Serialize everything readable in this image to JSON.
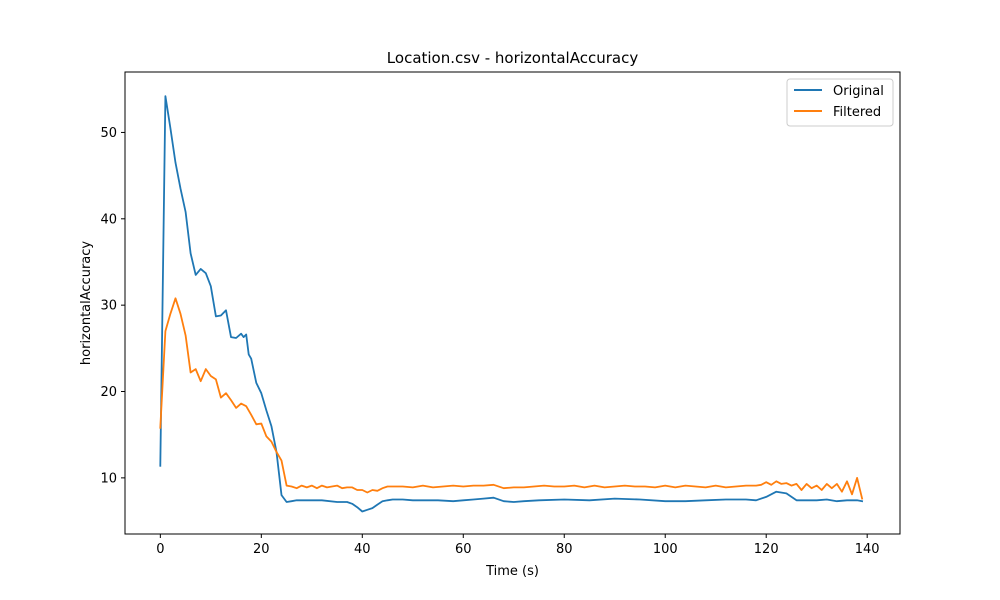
{
  "chart_data": {
    "type": "line",
    "title": "Location.csv - horizontalAccuracy",
    "xlabel": "Time (s)",
    "ylabel": "horizontalAccuracy",
    "xlim": [
      -7,
      146.5
    ],
    "ylim": [
      3.5,
      57
    ],
    "xticks": [
      0,
      20,
      40,
      60,
      80,
      100,
      120,
      140
    ],
    "yticks": [
      10,
      20,
      30,
      40,
      50
    ],
    "grid": false,
    "legend_position": "top-right",
    "series": [
      {
        "name": "Original",
        "color": "#1f77b4",
        "x": [
          0,
          1,
          2,
          3,
          4,
          5,
          6,
          7,
          8,
          9,
          10,
          11,
          12,
          13,
          14,
          15,
          16,
          16.5,
          17,
          17.5,
          18,
          19,
          20,
          21,
          22,
          23,
          24,
          25,
          26,
          27,
          30,
          32,
          35,
          36,
          37,
          38,
          39,
          40,
          41,
          42,
          43,
          44,
          45,
          46,
          48,
          50,
          55,
          58,
          60,
          62,
          64,
          66,
          68,
          70,
          72,
          75,
          80,
          85,
          90,
          95,
          100,
          104,
          108,
          112,
          116,
          118,
          120,
          122,
          124,
          126,
          128,
          130,
          132,
          134,
          136,
          138,
          139
        ],
        "values": [
          11.4,
          54.2,
          50.5,
          46.5,
          43.5,
          40.8,
          36,
          33.5,
          34.2,
          33.7,
          32.2,
          28.7,
          28.8,
          29.4,
          26.3,
          26.2,
          26.7,
          26.3,
          26.6,
          24.3,
          23.8,
          21,
          19.8,
          17.8,
          16,
          13,
          8,
          7.2,
          7.3,
          7.4,
          7.4,
          7.4,
          7.2,
          7.2,
          7.2,
          7,
          6.6,
          6.1,
          6.3,
          6.5,
          6.9,
          7.3,
          7.4,
          7.5,
          7.5,
          7.4,
          7.4,
          7.3,
          7.4,
          7.5,
          7.6,
          7.7,
          7.3,
          7.2,
          7.3,
          7.4,
          7.5,
          7.4,
          7.6,
          7.5,
          7.3,
          7.3,
          7.4,
          7.5,
          7.5,
          7.4,
          7.8,
          8.4,
          8.2,
          7.4,
          7.4,
          7.4,
          7.5,
          7.3,
          7.4,
          7.4,
          7.3
        ]
      },
      {
        "name": "Filtered",
        "color": "#ff7f0e",
        "x": [
          0,
          1,
          2,
          3,
          4,
          5,
          6,
          7,
          8,
          9,
          10,
          11,
          12,
          13,
          14,
          15,
          16,
          17,
          18,
          19,
          20,
          21,
          22,
          23,
          24,
          25,
          26,
          27,
          28,
          29,
          30,
          31,
          32,
          33,
          34,
          35,
          36,
          37,
          38,
          39,
          40,
          41,
          42,
          43,
          44,
          45,
          46,
          48,
          50,
          52,
          54,
          56,
          58,
          60,
          62,
          64,
          66,
          68,
          70,
          72,
          74,
          76,
          78,
          80,
          82,
          84,
          86,
          88,
          90,
          92,
          94,
          96,
          98,
          100,
          102,
          104,
          106,
          108,
          110,
          112,
          114,
          116,
          118,
          119,
          120,
          121,
          122,
          123,
          124,
          125,
          126,
          127,
          128,
          129,
          130,
          131,
          132,
          133,
          134,
          135,
          136,
          137,
          138,
          139
        ],
        "values": [
          15.8,
          27,
          29,
          30.8,
          29,
          26.5,
          22.2,
          22.6,
          21.2,
          22.6,
          21.8,
          21.4,
          19.3,
          19.8,
          19,
          18.1,
          18.6,
          18.3,
          17.3,
          16.2,
          16.3,
          14.8,
          14.2,
          13,
          12,
          9.1,
          9,
          8.8,
          9.1,
          8.9,
          9.1,
          8.8,
          9.1,
          8.9,
          9,
          9.1,
          8.8,
          8.9,
          8.9,
          8.6,
          8.6,
          8.3,
          8.6,
          8.5,
          8.8,
          9,
          9,
          9,
          8.9,
          9.1,
          8.9,
          9,
          9.1,
          9,
          9.1,
          9.1,
          9.2,
          8.8,
          8.9,
          8.9,
          9,
          9.1,
          9,
          9,
          9.1,
          8.9,
          9.1,
          8.9,
          9,
          9.1,
          9,
          9,
          8.9,
          9.1,
          8.9,
          9.1,
          9,
          8.9,
          9.1,
          8.9,
          9,
          9.1,
          9.1,
          9.2,
          9.5,
          9.2,
          9.6,
          9.3,
          9.4,
          9.1,
          9.3,
          8.6,
          9.3,
          8.8,
          9.1,
          8.6,
          9.3,
          8.8,
          9.3,
          8.4,
          9.6,
          8.1,
          10,
          7.6
        ]
      }
    ]
  }
}
